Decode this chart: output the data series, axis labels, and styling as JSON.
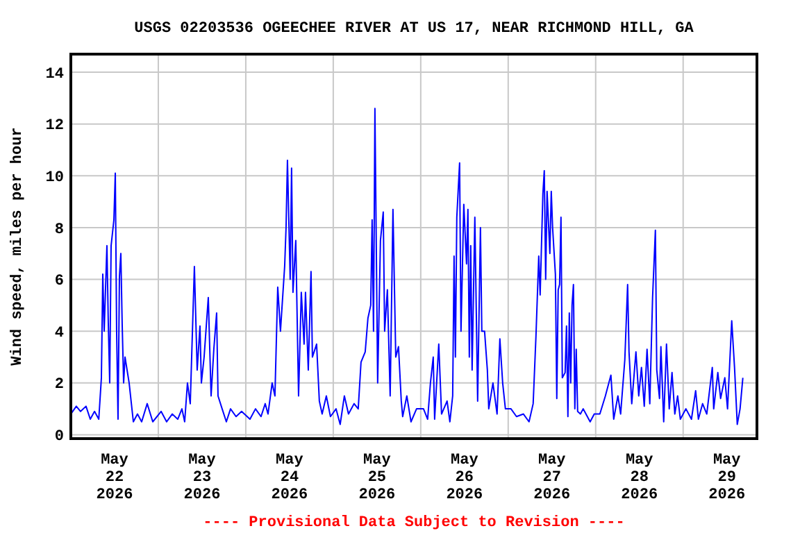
{
  "chart_data": {
    "type": "line",
    "title": "USGS 02203536 OGEECHEE RIVER AT US 17, NEAR RICHMOND HILL, GA",
    "ylabel": "Wind speed, miles per hour",
    "annotations": [
      "---- Provisional Data Subject to Revision ----"
    ],
    "grid": true,
    "marker": "none",
    "line_style": "solid",
    "xlim": [
      "2026-05-22T00:00",
      "2026-05-29T20:15"
    ],
    "xticks": [
      {
        "value": "2026-05-22T12:00",
        "label": "May\n22\n2026"
      },
      {
        "value": "2026-05-23T00:00",
        "label": null
      },
      {
        "value": "2026-05-23T12:00",
        "label": "May\n23\n2026"
      },
      {
        "value": "2026-05-24T00:00",
        "label": null
      },
      {
        "value": "2026-05-24T12:00",
        "label": "May\n24\n2026"
      },
      {
        "value": "2026-05-25T00:00",
        "label": null
      },
      {
        "value": "2026-05-25T12:00",
        "label": "May\n25\n2026"
      },
      {
        "value": "2026-05-26T00:00",
        "label": null
      },
      {
        "value": "2026-05-26T12:00",
        "label": "May\n26\n2026"
      },
      {
        "value": "2026-05-27T00:00",
        "label": null
      },
      {
        "value": "2026-05-27T12:00",
        "label": "May\n27\n2026"
      },
      {
        "value": "2026-05-28T00:00",
        "label": null
      },
      {
        "value": "2026-05-28T12:00",
        "label": "May\n28\n2026"
      },
      {
        "value": "2026-05-29T00:00",
        "label": null
      },
      {
        "value": "2026-05-29T12:00",
        "label": "May\n29\n2026"
      }
    ],
    "ylim": [
      -0.15,
      14.7
    ],
    "yticks": [
      0,
      2,
      4,
      6,
      8,
      10,
      12,
      14
    ],
    "series": [
      {
        "color": "#0000ff",
        "x": [
          "2026-05-22T00:00",
          "2026-05-22T01:30",
          "2026-05-22T02:40",
          "2026-05-22T04:10",
          "2026-05-22T05:20",
          "2026-05-22T06:30",
          "2026-05-22T07:40",
          "2026-05-22T08:23",
          "2026-05-22T08:46",
          "2026-05-22T09:09",
          "2026-05-22T09:54",
          "2026-05-22T10:17",
          "2026-05-22T10:40",
          "2026-05-22T11:03",
          "2026-05-22T11:49",
          "2026-05-22T12:12",
          "2026-05-22T12:34",
          "2026-05-22T12:57",
          "2026-05-22T13:20",
          "2026-05-22T13:43",
          "2026-05-22T14:06",
          "2026-05-22T14:29",
          "2026-05-22T14:52",
          "2026-05-22T16:00",
          "2026-05-22T16:46",
          "2026-05-22T17:09",
          "2026-05-22T18:17",
          "2026-05-22T19:26",
          "2026-05-22T20:57",
          "2026-05-22T22:29",
          "2026-05-23T00:46",
          "2026-05-23T02:17",
          "2026-05-23T03:49",
          "2026-05-23T05:20",
          "2026-05-23T06:29",
          "2026-05-23T07:14",
          "2026-05-23T08:00",
          "2026-05-23T08:46",
          "2026-05-23T09:54",
          "2026-05-23T10:40",
          "2026-05-23T11:26",
          "2026-05-23T11:49",
          "2026-05-23T12:34",
          "2026-05-23T13:43",
          "2026-05-23T14:29",
          "2026-05-23T15:14",
          "2026-05-23T16:00",
          "2026-05-23T16:23",
          "2026-05-23T17:31",
          "2026-05-23T18:40",
          "2026-05-23T19:49",
          "2026-05-23T21:20",
          "2026-05-23T22:51",
          "2026-05-24T01:09",
          "2026-05-24T02:40",
          "2026-05-24T04:11",
          "2026-05-24T05:20",
          "2026-05-24T06:06",
          "2026-05-24T07:14",
          "2026-05-24T08:00",
          "2026-05-24T08:46",
          "2026-05-24T09:31",
          "2026-05-24T10:40",
          "2026-05-24T11:03",
          "2026-05-24T11:26",
          "2026-05-24T12:11",
          "2026-05-24T12:34",
          "2026-05-24T12:57",
          "2026-05-24T13:43",
          "2026-05-24T14:29",
          "2026-05-24T15:14",
          "2026-05-24T16:00",
          "2026-05-24T16:23",
          "2026-05-24T17:09",
          "2026-05-24T17:54",
          "2026-05-24T18:17",
          "2026-05-24T19:26",
          "2026-05-24T20:11",
          "2026-05-24T20:57",
          "2026-05-24T22:06",
          "2026-05-24T23:14",
          "2026-05-25T00:46",
          "2026-05-25T01:54",
          "2026-05-25T03:03",
          "2026-05-25T04:11",
          "2026-05-25T05:43",
          "2026-05-25T06:51",
          "2026-05-25T07:37",
          "2026-05-25T08:46",
          "2026-05-25T09:31",
          "2026-05-25T10:17",
          "2026-05-25T10:40",
          "2026-05-25T11:03",
          "2026-05-25T11:26",
          "2026-05-25T12:11",
          "2026-05-25T12:57",
          "2026-05-25T13:43",
          "2026-05-25T14:06",
          "2026-05-25T14:51",
          "2026-05-25T15:37",
          "2026-05-25T16:23",
          "2026-05-25T17:09",
          "2026-05-25T17:54",
          "2026-05-25T18:40",
          "2026-05-25T19:03",
          "2026-05-25T20:11",
          "2026-05-25T21:20",
          "2026-05-25T22:51",
          "2026-05-26T00:46",
          "2026-05-26T01:54",
          "2026-05-26T02:40",
          "2026-05-26T03:26",
          "2026-05-26T03:49",
          "2026-05-26T04:57",
          "2026-05-26T05:43",
          "2026-05-26T07:14",
          "2026-05-26T08:00",
          "2026-05-26T08:46",
          "2026-05-26T09:09",
          "2026-05-26T09:31",
          "2026-05-26T09:54",
          "2026-05-26T10:40",
          "2026-05-26T11:03",
          "2026-05-26T11:49",
          "2026-05-26T12:34",
          "2026-05-26T12:57",
          "2026-05-26T13:20",
          "2026-05-26T13:43",
          "2026-05-26T14:06",
          "2026-05-26T14:51",
          "2026-05-26T15:37",
          "2026-05-26T16:23",
          "2026-05-26T16:46",
          "2026-05-26T17:31",
          "2026-05-26T18:17",
          "2026-05-26T18:40",
          "2026-05-26T19:49",
          "2026-05-26T20:57",
          "2026-05-26T21:43",
          "2026-05-26T22:29",
          "2026-05-26T23:14",
          "2026-05-27T00:46",
          "2026-05-27T02:17",
          "2026-05-27T04:11",
          "2026-05-27T05:43",
          "2026-05-27T06:51",
          "2026-05-27T07:37",
          "2026-05-27T08:23",
          "2026-05-27T08:46",
          "2026-05-27T09:31",
          "2026-05-27T09:54",
          "2026-05-27T10:17",
          "2026-05-27T10:40",
          "2026-05-27T11:26",
          "2026-05-27T11:49",
          "2026-05-27T12:11",
          "2026-05-27T12:57",
          "2026-05-27T13:20",
          "2026-05-27T13:43",
          "2026-05-27T14:06",
          "2026-05-27T14:29",
          "2026-05-27T14:51",
          "2026-05-27T15:37",
          "2026-05-27T16:00",
          "2026-05-27T16:23",
          "2026-05-27T16:46",
          "2026-05-27T17:09",
          "2026-05-27T17:31",
          "2026-05-27T17:54",
          "2026-05-27T18:17",
          "2026-05-27T18:40",
          "2026-05-27T19:03",
          "2026-05-27T19:49",
          "2026-05-27T20:34",
          "2026-05-27T22:29",
          "2026-05-27T23:37",
          "2026-05-28T01:09",
          "2026-05-28T02:40",
          "2026-05-28T04:11",
          "2026-05-28T04:57",
          "2026-05-28T06:06",
          "2026-05-28T06:51",
          "2026-05-28T08:00",
          "2026-05-28T08:46",
          "2026-05-28T09:09",
          "2026-05-28T09:54",
          "2026-05-28T11:03",
          "2026-05-28T11:49",
          "2026-05-28T12:34",
          "2026-05-28T13:20",
          "2026-05-28T14:06",
          "2026-05-28T14:51",
          "2026-05-28T15:37",
          "2026-05-28T16:23",
          "2026-05-28T16:46",
          "2026-05-28T17:31",
          "2026-05-28T17:54",
          "2026-05-28T18:40",
          "2026-05-28T19:26",
          "2026-05-28T20:11",
          "2026-05-28T20:57",
          "2026-05-28T21:43",
          "2026-05-28T22:29",
          "2026-05-28T23:14",
          "2026-05-29T00:46",
          "2026-05-29T02:17",
          "2026-05-29T03:26",
          "2026-05-29T04:11",
          "2026-05-29T05:20",
          "2026-05-29T06:29",
          "2026-05-29T08:00",
          "2026-05-29T08:23",
          "2026-05-29T09:31",
          "2026-05-29T10:17",
          "2026-05-29T11:26",
          "2026-05-29T12:11",
          "2026-05-29T13:20",
          "2026-05-29T14:06",
          "2026-05-29T14:51",
          "2026-05-29T15:37",
          "2026-05-29T16:23"
        ],
        "values": [
          0.8,
          1.1,
          0.9,
          1.1,
          0.6,
          0.9,
          0.6,
          2.2,
          6.2,
          4,
          7.3,
          4.3,
          2,
          7.3,
          8.3,
          10.1,
          4,
          0.6,
          6.1,
          7,
          4.2,
          2,
          3,
          2,
          1,
          0.5,
          0.8,
          0.5,
          1.2,
          0.5,
          0.9,
          0.5,
          0.8,
          0.6,
          1,
          0.5,
          2,
          1.2,
          6.5,
          2.5,
          4.2,
          2,
          3,
          5.3,
          1.5,
          3.3,
          4.7,
          1.5,
          1,
          0.5,
          1,
          0.7,
          0.9,
          0.6,
          1,
          0.7,
          1.2,
          0.8,
          2,
          1.5,
          5.7,
          4,
          6.5,
          8,
          10.6,
          6,
          10.3,
          5.5,
          7.5,
          1.5,
          5.5,
          3.5,
          5.5,
          2.5,
          6.3,
          3,
          3.5,
          1.3,
          0.8,
          1.5,
          0.7,
          1,
          0.4,
          1.5,
          0.8,
          1.2,
          1,
          2.8,
          3.2,
          4.5,
          5,
          8.3,
          4,
          12.6,
          2,
          7.5,
          8.6,
          4,
          5.6,
          1.5,
          8.7,
          3,
          3.4,
          1.3,
          0.7,
          1.5,
          0.5,
          1,
          1,
          0.6,
          2,
          3,
          0.6,
          3.5,
          0.8,
          1.3,
          0.5,
          1.5,
          6.9,
          3,
          8.4,
          10.5,
          4,
          8.9,
          6.6,
          8.7,
          3,
          7.3,
          2.5,
          8.4,
          1.3,
          8,
          4,
          4,
          2.5,
          1,
          2,
          0.8,
          3.7,
          2,
          1,
          1,
          0.7,
          0.8,
          0.5,
          1.2,
          3.8,
          6.9,
          5.4,
          9.3,
          10.2,
          6,
          9.4,
          7,
          9.4,
          8,
          6.2,
          1.4,
          5.6,
          5.8,
          8.4,
          2.2,
          2.4,
          4.2,
          0.7,
          4.7,
          2,
          5,
          5.8,
          1,
          3.3,
          0.9,
          0.8,
          1,
          0.5,
          0.8,
          0.8,
          1.5,
          2.3,
          0.6,
          1.5,
          0.8,
          2.9,
          5.8,
          3.2,
          1.2,
          3.2,
          1.5,
          2.6,
          1.1,
          3.3,
          1.2,
          5.3,
          7.9,
          2.5,
          1.4,
          3.4,
          0.5,
          3.5,
          1,
          2.4,
          0.8,
          1.5,
          0.6,
          1,
          0.6,
          1.7,
          0.6,
          1.2,
          0.8,
          2.6,
          1,
          2.4,
          1.4,
          2.2,
          1,
          4.4,
          2.6,
          0.4,
          1,
          2.2
        ]
      }
    ]
  }
}
